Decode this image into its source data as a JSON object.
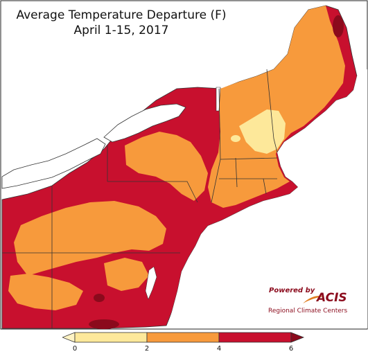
{
  "title": {
    "line1": "Average Temperature Departure (F)",
    "line2": "April 1-15, 2017"
  },
  "credit": {
    "powered_by": "Powered by",
    "brand": "ACIS",
    "org": "Regional Climate Centers"
  },
  "legend": {
    "ticks": [
      "0",
      "2",
      "4",
      "6"
    ],
    "bins": [
      {
        "from": 0,
        "to": 2,
        "color": "#fde89a"
      },
      {
        "from": 2,
        "to": 4,
        "color": "#f79a3c"
      },
      {
        "from": 4,
        "to": 6,
        "color": "#c8102e"
      }
    ],
    "below_color": "#fff3c4",
    "above_color": "#8b0a1c"
  },
  "colors": {
    "hot": "#c8102e",
    "warm": "#f79a3c",
    "mild": "#fde89a",
    "very_hot": "#8b0a1c",
    "lake": "#ffffff"
  }
}
